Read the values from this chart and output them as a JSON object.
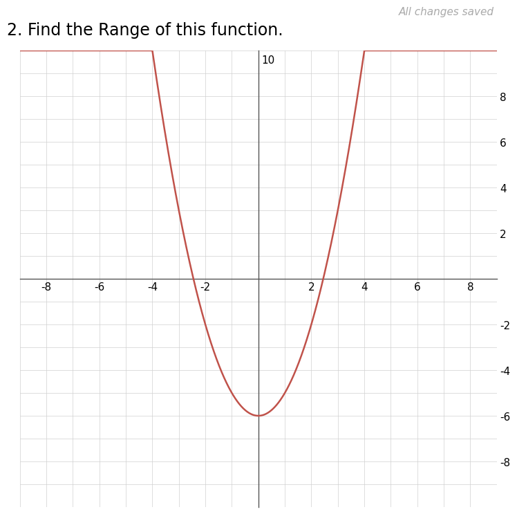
{
  "title": "2. Find the Range of this function.",
  "title_fontsize": 17,
  "curve_color": "#c0524a",
  "curve_linewidth": 1.8,
  "x_range": [
    -9,
    9
  ],
  "y_range": [
    -10,
    10
  ],
  "x_ticks": [
    -8,
    -6,
    -4,
    -2,
    2,
    4,
    6,
    8
  ],
  "y_ticks": [
    -8,
    -6,
    -4,
    -2,
    2,
    4,
    6,
    8
  ],
  "y_top_label": "10",
  "grid_color": "#d0d0d0",
  "grid_linewidth": 0.5,
  "axis_color": "#555555",
  "tick_fontsize": 11,
  "background_color": "#ffffff",
  "header_text": "All changes saved",
  "header_color": "#aaaaaa",
  "header_fontsize": 11,
  "vertex_x": 0,
  "vertex_y": -6,
  "coeff_a": 1
}
